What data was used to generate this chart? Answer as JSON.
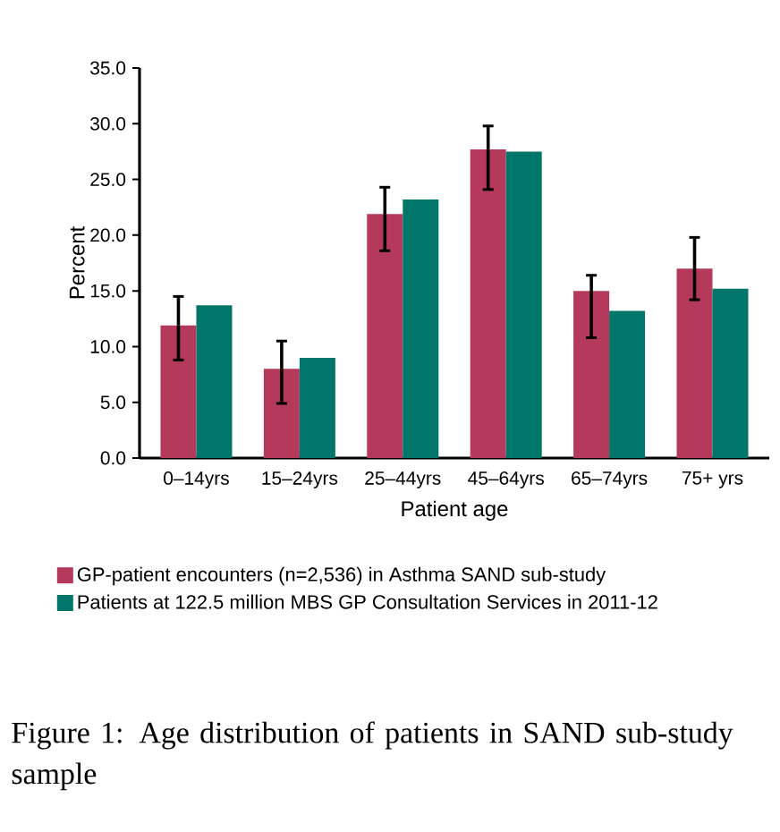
{
  "chart_data": {
    "type": "bar",
    "title": "Figure 1: Age distribution of patients in SAND sub-study sample",
    "xlabel": "Patient age",
    "ylabel": "Percent",
    "categories": [
      "0–14yrs",
      "15–24yrs",
      "25–44yrs",
      "45–64yrs",
      "65–74yrs",
      "75+ yrs"
    ],
    "series": [
      {
        "name": "GP-patient encounters (n=2,536) in Asthma SAND sub-study",
        "color": "#b5395a",
        "values": [
          11.9,
          8.0,
          21.9,
          27.7,
          15.0,
          17.0
        ],
        "errors": [
          [
            8.8,
            14.5
          ],
          [
            4.9,
            10.5
          ],
          [
            18.6,
            24.3
          ],
          [
            24.1,
            29.8
          ],
          [
            10.8,
            16.4
          ],
          [
            14.2,
            19.8
          ]
        ]
      },
      {
        "name": "Patients at 122.5 million MBS GP Consultation Services in 2011-12",
        "color": "#00766a",
        "values": [
          13.7,
          9.0,
          23.2,
          27.5,
          13.2,
          15.2
        ]
      }
    ],
    "ylim": [
      0,
      35
    ],
    "yticks": [
      {
        "value": 0,
        "label": "0.0"
      },
      {
        "value": 5,
        "label": "5.0"
      },
      {
        "value": 10,
        "label": "10.0"
      },
      {
        "value": 15,
        "label": "15.0"
      },
      {
        "value": 20,
        "label": "20.0"
      },
      {
        "value": 25,
        "label": "25.0"
      },
      {
        "value": 30,
        "label": "30.0"
      },
      {
        "value": 35,
        "label": "35.0"
      }
    ],
    "grid": false,
    "legend": "bottom"
  }
}
